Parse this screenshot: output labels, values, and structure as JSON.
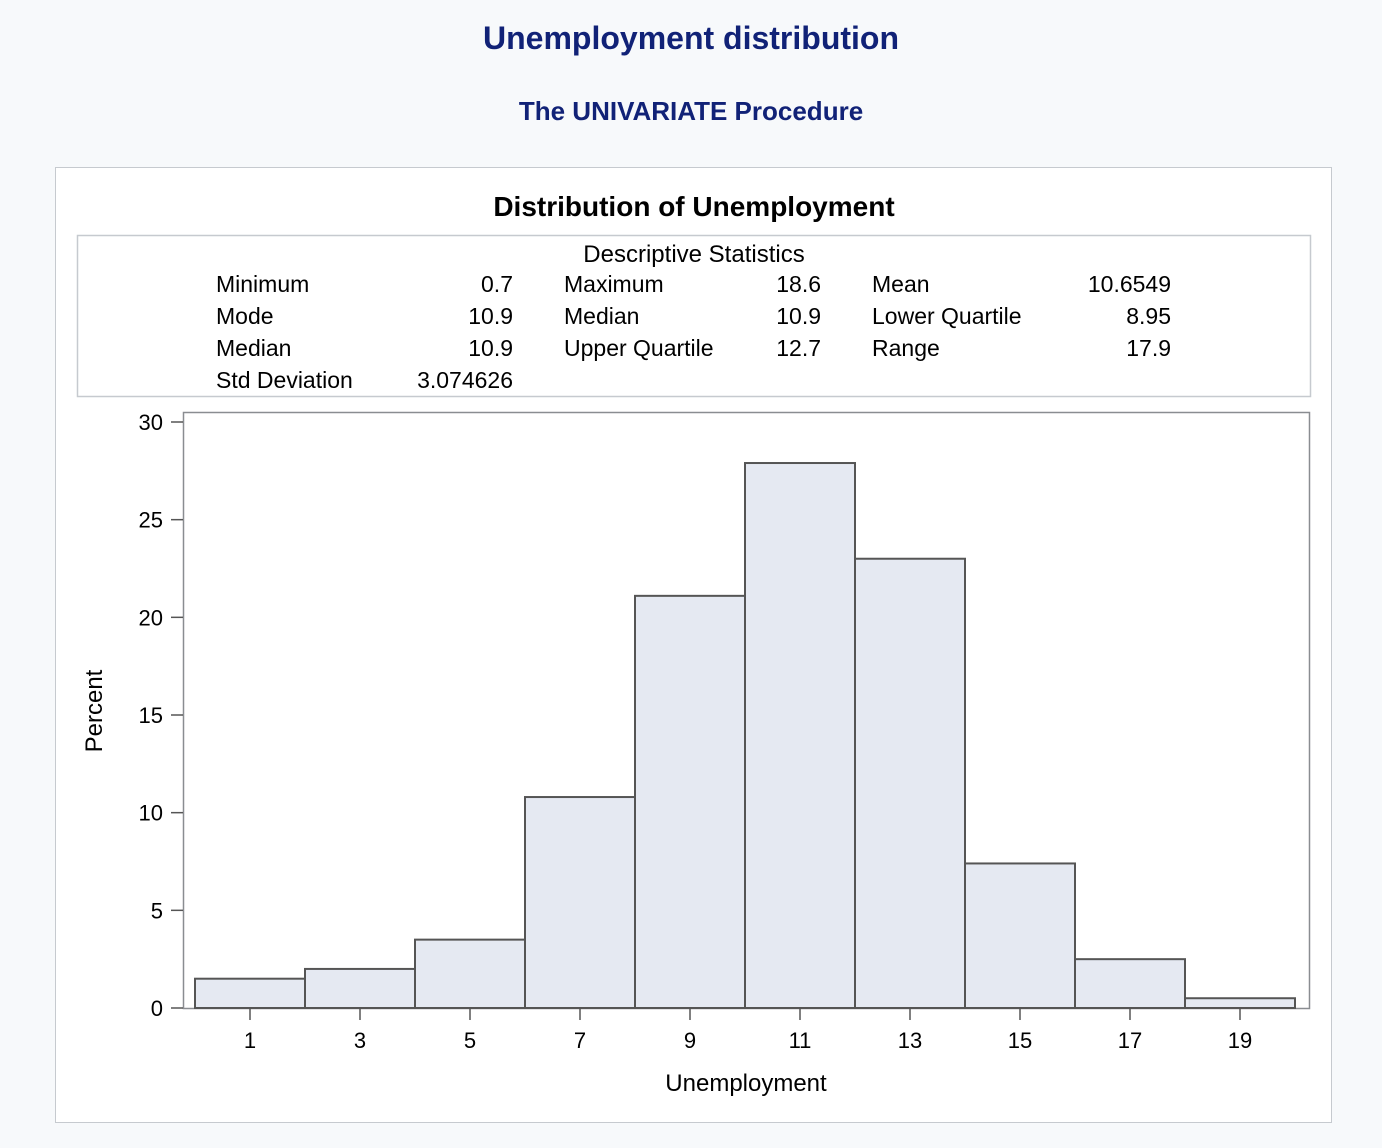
{
  "header": {
    "title": "Unemployment distribution",
    "procedure": "The UNIVARIATE Procedure"
  },
  "chart_data": {
    "type": "bar",
    "title": "Distribution of Unemployment",
    "xlabel": "Unemployment",
    "ylabel": "Percent",
    "bin_midpoints": [
      1,
      3,
      5,
      7,
      9,
      11,
      13,
      15,
      17,
      19
    ],
    "values": [
      1.5,
      2.0,
      3.5,
      10.8,
      21.1,
      27.9,
      23.0,
      7.4,
      2.5,
      0.5
    ],
    "yticks": [
      0,
      5,
      10,
      15,
      20,
      25,
      30
    ],
    "ylim": [
      0,
      30
    ],
    "grid": false,
    "bar_color": "#e5e9f2",
    "bar_stroke": "#555555",
    "stats": {
      "title": "Descriptive Statistics",
      "rows": [
        [
          {
            "label": "Minimum",
            "value": "0.7"
          },
          {
            "label": "Maximum",
            "value": "18.6"
          },
          {
            "label": "Mean",
            "value": "10.6549"
          }
        ],
        [
          {
            "label": "Mode",
            "value": "10.9"
          },
          {
            "label": "Median",
            "value": "10.9"
          },
          {
            "label": "Lower Quartile",
            "value": "8.95"
          }
        ],
        [
          {
            "label": "Median",
            "value": "10.9"
          },
          {
            "label": "Upper Quartile",
            "value": "12.7"
          },
          {
            "label": "Range",
            "value": "17.9"
          }
        ],
        [
          {
            "label": "Std Deviation",
            "value": "3.074626"
          }
        ]
      ]
    }
  }
}
